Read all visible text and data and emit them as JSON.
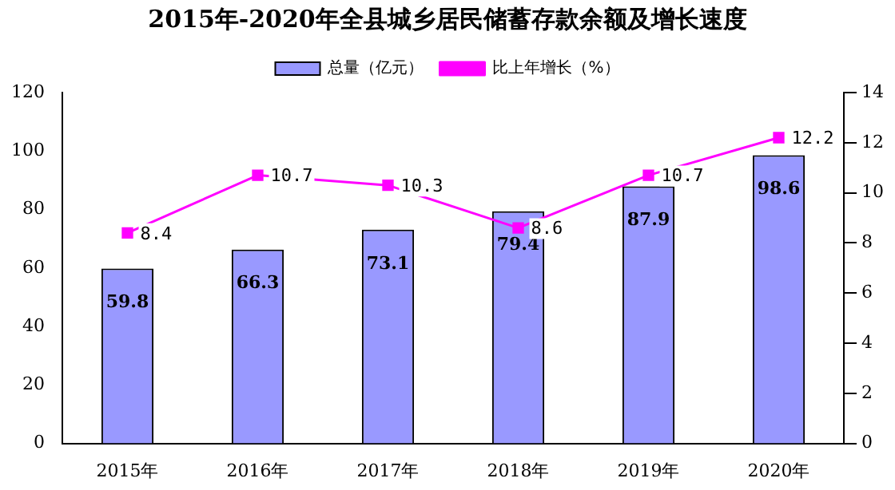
{
  "chart_data": {
    "type": "bar",
    "title": "2015年-2020年全县城乡居民储蓄存款余额及增长速度",
    "categories": [
      "2015年",
      "2016年",
      "2017年",
      "2018年",
      "2019年",
      "2020年"
    ],
    "series": [
      {
        "name": "总量（亿元）",
        "color": "#9999ff",
        "values": [
          59.8,
          66.3,
          73.1,
          79.4,
          87.9,
          98.6
        ]
      },
      {
        "name": "比上年增长（%）",
        "type": "line",
        "axis": "y2",
        "color": "#ff00ff",
        "values": [
          8.4,
          10.7,
          10.3,
          8.6,
          10.7,
          12.2
        ]
      }
    ],
    "ylim": [
      0,
      120
    ],
    "yticks": [
      0,
      20,
      40,
      60,
      80,
      100,
      120
    ],
    "y2lim": [
      0,
      14
    ],
    "y2ticks": [
      0,
      2,
      4,
      6,
      8,
      10,
      12,
      14
    ],
    "grid": false,
    "legend": "top",
    "marker": "square",
    "data_labels": true
  }
}
